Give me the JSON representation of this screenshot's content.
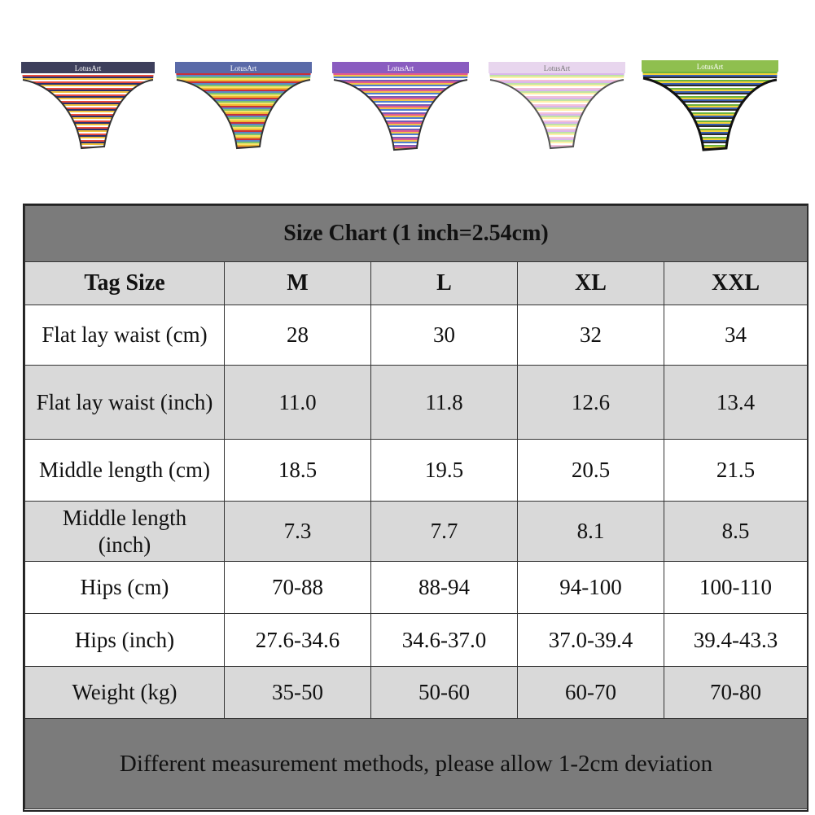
{
  "products": [
    {
      "name": "stripe-pattern-1",
      "band_text": "LotusArt",
      "colors": [
        "#e84a3c",
        "#2a2f6e",
        "#f2c33b",
        "#ffffff",
        "#c8c8c8"
      ]
    },
    {
      "name": "stripe-pattern-2",
      "band_text": "LotusArt",
      "colors": [
        "#f0b732",
        "#c8303a",
        "#5b87c7",
        "#7ec46b",
        "#f6e36a"
      ]
    },
    {
      "name": "stripe-pattern-3",
      "band_text": "LotusArt",
      "colors": [
        "#7a5bb5",
        "#e35b8f",
        "#f0c34a",
        "#4c7fd1",
        "#ffffff"
      ]
    },
    {
      "name": "stripe-pattern-4",
      "band_text": "LotusArt",
      "colors": [
        "#f3c0d8",
        "#d8b6ec",
        "#bfe3a5",
        "#fff1a8",
        "#ffffff"
      ]
    },
    {
      "name": "stripe-pattern-5",
      "band_text": "LotusArt",
      "colors": [
        "#6fb33f",
        "#f2d23b",
        "#3a5fb3",
        "#2b2b2b",
        "#ffffff"
      ]
    }
  ],
  "chart": {
    "title": "Size Chart (1 inch=2.54cm)",
    "header": [
      "Tag Size",
      "M",
      "L",
      "XL",
      "XXL"
    ],
    "rows": [
      {
        "label": "Flat lay waist (cm)",
        "values": [
          "28",
          "30",
          "32",
          "34"
        ]
      },
      {
        "label": "Flat lay waist (inch)",
        "values": [
          "11.0",
          "11.8",
          "12.6",
          "13.4"
        ]
      },
      {
        "label": "Middle length (cm)",
        "values": [
          "18.5",
          "19.5",
          "20.5",
          "21.5"
        ]
      },
      {
        "label": "Middle length (inch)",
        "values": [
          "7.3",
          "7.7",
          "8.1",
          "8.5"
        ]
      },
      {
        "label": "Hips (cm)",
        "values": [
          "70-88",
          "88-94",
          "94-100",
          "100-110"
        ]
      },
      {
        "label": "Hips (inch)",
        "values": [
          "27.6-34.6",
          "34.6-37.0",
          "37.0-39.4",
          "39.4-43.3"
        ]
      },
      {
        "label": "Weight (kg)",
        "values": [
          "35-50",
          "50-60",
          "60-70",
          "70-80"
        ]
      }
    ],
    "note": "Different measurement methods, please allow 1-2cm deviation"
  },
  "colors": {
    "title_bg": "#7b7b7b",
    "grey_row": "#d9d9d9",
    "white_row": "#ffffff"
  }
}
